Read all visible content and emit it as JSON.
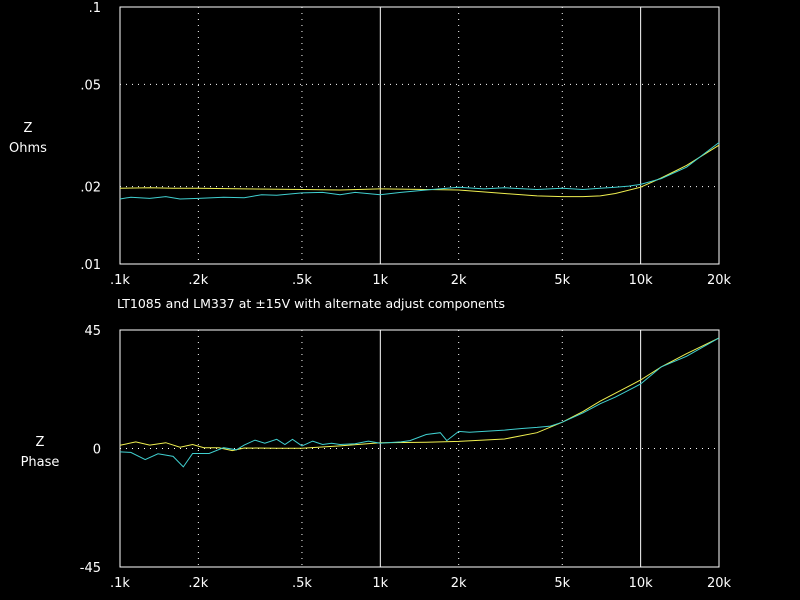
{
  "caption": "LT1085 and LM337 at ±15V with alternate adjust components",
  "colors": {
    "background": "#000000",
    "axes": "#ffffff",
    "yellow": "#f0f050",
    "cyan": "#40d0d0"
  },
  "chart_data": [
    {
      "type": "line",
      "x_scale": "log",
      "y_scale": "log",
      "xlim": [
        100,
        20000
      ],
      "ylim": [
        0.01,
        0.1
      ],
      "ylabel_lines": [
        "Z",
        "Ohms"
      ],
      "xticks": [
        {
          "v": 100,
          "label": ".1k"
        },
        {
          "v": 200,
          "label": ".2k"
        },
        {
          "v": 500,
          "label": ".5k"
        },
        {
          "v": 1000,
          "label": "1k"
        },
        {
          "v": 2000,
          "label": "2k"
        },
        {
          "v": 5000,
          "label": "5k"
        },
        {
          "v": 10000,
          "label": "10k"
        },
        {
          "v": 20000,
          "label": "20k"
        }
      ],
      "yticks": [
        {
          "v": 0.01,
          "label": ".01"
        },
        {
          "v": 0.02,
          "label": ".02"
        },
        {
          "v": 0.05,
          "label": ".05"
        },
        {
          "v": 0.1,
          "label": ".1"
        }
      ],
      "series": [
        {
          "color": "#f0f050",
          "x": [
            100,
            130,
            160,
            200,
            300,
            500,
            700,
            1000,
            1500,
            2000,
            3000,
            4000,
            5000,
            6000,
            7000,
            8000,
            10000,
            12000,
            15000,
            20000
          ],
          "y": [
            0.0197,
            0.0198,
            0.0197,
            0.0197,
            0.0196,
            0.0195,
            0.0194,
            0.0196,
            0.0195,
            0.0194,
            0.0188,
            0.0184,
            0.0183,
            0.0183,
            0.0184,
            0.0188,
            0.0199,
            0.0216,
            0.0242,
            0.029
          ]
        },
        {
          "color": "#40d0d0",
          "x": [
            100,
            110,
            130,
            150,
            170,
            200,
            250,
            300,
            350,
            400,
            500,
            600,
            700,
            800,
            1000,
            1200,
            1500,
            2000,
            2500,
            3000,
            4000,
            5000,
            6000,
            7000,
            8000,
            9000,
            10000,
            12000,
            15000,
            20000
          ],
          "y": [
            0.0179,
            0.0182,
            0.018,
            0.0183,
            0.0179,
            0.018,
            0.0182,
            0.0181,
            0.0186,
            0.0185,
            0.0189,
            0.019,
            0.0186,
            0.019,
            0.0186,
            0.019,
            0.0194,
            0.0199,
            0.0196,
            0.0198,
            0.0195,
            0.0197,
            0.0195,
            0.0197,
            0.0199,
            0.0201,
            0.0204,
            0.0215,
            0.0238,
            0.0297
          ]
        }
      ]
    },
    {
      "type": "line",
      "x_scale": "log",
      "xlim": [
        100,
        20000
      ],
      "ylim": [
        -45,
        45
      ],
      "ylabel_lines": [
        "Z",
        "Phase"
      ],
      "xticks": [
        {
          "v": 100,
          "label": ".1k"
        },
        {
          "v": 200,
          "label": ".2k"
        },
        {
          "v": 500,
          "label": ".5k"
        },
        {
          "v": 1000,
          "label": "1k"
        },
        {
          "v": 2000,
          "label": "2k"
        },
        {
          "v": 5000,
          "label": "5k"
        },
        {
          "v": 10000,
          "label": "10k"
        },
        {
          "v": 20000,
          "label": "20k"
        }
      ],
      "yticks": [
        {
          "v": -45,
          "label": "-45"
        },
        {
          "v": 0,
          "label": "0"
        },
        {
          "v": 45,
          "label": "45"
        }
      ],
      "series": [
        {
          "color": "#f0f050",
          "x": [
            100,
            115,
            130,
            150,
            170,
            190,
            210,
            240,
            270,
            300,
            400,
            500,
            700,
            1000,
            1500,
            2000,
            3000,
            4000,
            5000,
            6000,
            7000,
            8000,
            10000,
            12000,
            15000,
            20000
          ],
          "y": [
            1.2,
            2.5,
            1.3,
            2.2,
            0.5,
            1.5,
            0.3,
            0.3,
            -0.8,
            0.2,
            0.1,
            0.1,
            1.0,
            2.2,
            2.4,
            2.7,
            3.6,
            6.0,
            10.0,
            14.0,
            18.0,
            21.0,
            26.0,
            31.0,
            36.0,
            42.0
          ]
        },
        {
          "color": "#40d0d0",
          "x": [
            100,
            110,
            125,
            140,
            160,
            175,
            190,
            200,
            220,
            250,
            280,
            300,
            330,
            360,
            400,
            430,
            460,
            500,
            550,
            600,
            650,
            700,
            800,
            900,
            1000,
            1200,
            1300,
            1500,
            1700,
            1800,
            2000,
            2200,
            2500,
            3000,
            3500,
            4000,
            4500,
            5000,
            6000,
            7000,
            8000,
            10000,
            12000,
            15000,
            20000
          ],
          "y": [
            -1.3,
            -1.5,
            -4.2,
            -2.0,
            -3.0,
            -7.0,
            -1.9,
            -1.9,
            -1.9,
            0.3,
            -0.5,
            1.3,
            3.2,
            2.0,
            3.5,
            1.5,
            3.5,
            1.0,
            2.8,
            1.5,
            2.0,
            1.5,
            1.8,
            2.8,
            2.0,
            2.5,
            3.0,
            5.3,
            6.0,
            3.0,
            6.5,
            6.2,
            6.5,
            7.0,
            7.6,
            8.0,
            8.5,
            10.0,
            13.5,
            17.0,
            19.5,
            24.5,
            31.0,
            35.0,
            42.0
          ]
        }
      ]
    }
  ]
}
